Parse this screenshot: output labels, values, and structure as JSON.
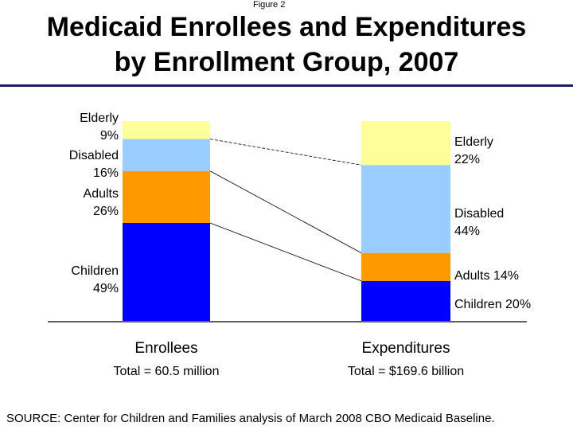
{
  "figure_label": "Figure 2",
  "source": "SOURCE: Center for Children and Families analysis of March 2008 CBO Medicaid Baseline.",
  "chart_data": {
    "type": "bar",
    "stacked": true,
    "normalized_percent": true,
    "title": [
      "Medicaid Enrollees and Expenditures",
      "by Enrollment Group, 2007"
    ],
    "categories": [
      "Enrollees",
      "Expenditures"
    ],
    "category_subtitles": [
      "Total = 60.5 million",
      "Total = $169.6 billion"
    ],
    "ylim": [
      0,
      100
    ],
    "grid": false,
    "legend": "none",
    "series": [
      {
        "name": "Children",
        "values": [
          49,
          20
        ],
        "color": "#0000ff",
        "labels": [
          [
            "Children",
            "49%"
          ],
          [
            "Children 20%"
          ]
        ]
      },
      {
        "name": "Adults",
        "values": [
          26,
          14
        ],
        "color": "#ff9900",
        "labels": [
          [
            "Adults",
            "26%"
          ],
          [
            "Adults 14%"
          ]
        ]
      },
      {
        "name": "Disabled",
        "values": [
          16,
          44
        ],
        "color": "#99ccff",
        "labels": [
          [
            "Disabled",
            "16%"
          ],
          [
            "Disabled",
            "44%"
          ]
        ]
      },
      {
        "name": "Elderly",
        "values": [
          9,
          22
        ],
        "color": "#ffff99",
        "labels": [
          [
            "Elderly",
            "9%"
          ],
          [
            "Elderly",
            "22%"
          ]
        ]
      }
    ]
  }
}
